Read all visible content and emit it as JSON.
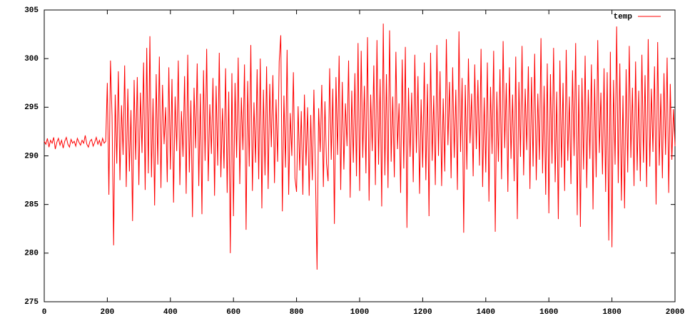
{
  "chart_data": {
    "type": "line",
    "xlim": [
      0,
      2000
    ],
    "ylim": [
      275,
      305
    ],
    "xticks": [
      0,
      200,
      400,
      600,
      800,
      1000,
      1200,
      1400,
      1600,
      1800,
      2000
    ],
    "yticks": [
      275,
      280,
      285,
      290,
      295,
      300,
      305
    ],
    "legend": "top-right",
    "x": [
      0,
      5,
      10,
      15,
      20,
      25,
      30,
      35,
      40,
      45,
      50,
      55,
      60,
      65,
      70,
      75,
      80,
      85,
      90,
      95,
      100,
      105,
      110,
      115,
      120,
      125,
      130,
      135,
      140,
      145,
      150,
      155,
      160,
      165,
      170,
      175,
      180,
      185,
      190,
      195,
      200,
      205,
      210,
      215,
      220,
      225,
      230,
      235,
      240,
      245,
      250,
      255,
      260,
      265,
      270,
      275,
      280,
      285,
      290,
      295,
      300,
      305,
      310,
      315,
      320,
      325,
      330,
      335,
      340,
      345,
      350,
      355,
      360,
      365,
      370,
      375,
      380,
      385,
      390,
      395,
      400,
      405,
      410,
      415,
      420,
      425,
      430,
      435,
      440,
      445,
      450,
      455,
      460,
      465,
      470,
      475,
      480,
      485,
      490,
      495,
      500,
      505,
      510,
      515,
      520,
      525,
      530,
      535,
      540,
      545,
      550,
      555,
      560,
      565,
      570,
      575,
      580,
      585,
      590,
      595,
      600,
      605,
      610,
      615,
      620,
      625,
      630,
      635,
      640,
      645,
      650,
      655,
      660,
      665,
      670,
      675,
      680,
      685,
      690,
      695,
      700,
      705,
      710,
      715,
      720,
      725,
      730,
      735,
      740,
      745,
      750,
      755,
      760,
      765,
      770,
      775,
      780,
      785,
      790,
      795,
      800,
      805,
      810,
      815,
      820,
      825,
      830,
      835,
      840,
      845,
      850,
      855,
      860,
      865,
      870,
      875,
      880,
      885,
      890,
      895,
      900,
      905,
      910,
      915,
      920,
      925,
      930,
      935,
      940,
      945,
      950,
      955,
      960,
      965,
      970,
      975,
      980,
      985,
      990,
      995,
      1000,
      1005,
      1010,
      1015,
      1020,
      1025,
      1030,
      1035,
      1040,
      1045,
      1050,
      1055,
      1060,
      1065,
      1070,
      1075,
      1080,
      1085,
      1090,
      1095,
      1100,
      1105,
      1110,
      1115,
      1120,
      1125,
      1130,
      1135,
      1140,
      1145,
      1150,
      1155,
      1160,
      1165,
      1170,
      1175,
      1180,
      1185,
      1190,
      1195,
      1200,
      1205,
      1210,
      1215,
      1220,
      1225,
      1230,
      1235,
      1240,
      1245,
      1250,
      1255,
      1260,
      1265,
      1270,
      1275,
      1280,
      1285,
      1290,
      1295,
      1300,
      1305,
      1310,
      1315,
      1320,
      1325,
      1330,
      1335,
      1340,
      1345,
      1350,
      1355,
      1360,
      1365,
      1370,
      1375,
      1380,
      1385,
      1390,
      1395,
      1400,
      1405,
      1410,
      1415,
      1420,
      1425,
      1430,
      1435,
      1440,
      1445,
      1450,
      1455,
      1460,
      1465,
      1470,
      1475,
      1480,
      1485,
      1490,
      1495,
      1500,
      1505,
      1510,
      1515,
      1520,
      1525,
      1530,
      1535,
      1540,
      1545,
      1550,
      1555,
      1560,
      1565,
      1570,
      1575,
      1580,
      1585,
      1590,
      1595,
      1600,
      1605,
      1610,
      1615,
      1620,
      1625,
      1630,
      1635,
      1640,
      1645,
      1650,
      1655,
      1660,
      1665,
      1670,
      1675,
      1680,
      1685,
      1690,
      1695,
      1700,
      1705,
      1710,
      1715,
      1720,
      1725,
      1730,
      1735,
      1740,
      1745,
      1750,
      1755,
      1760,
      1765,
      1770,
      1775,
      1780,
      1785,
      1790,
      1795,
      1800,
      1805,
      1810,
      1815,
      1820,
      1825,
      1830,
      1835,
      1840,
      1845,
      1850,
      1855,
      1860,
      1865,
      1870,
      1875,
      1880,
      1885,
      1890,
      1895,
      1900,
      1905,
      1910,
      1915,
      1920,
      1925,
      1930,
      1935,
      1940,
      1945,
      1950,
      1955,
      1960,
      1965,
      1970,
      1975,
      1980,
      1985,
      1990,
      1995,
      2000
    ],
    "series": [
      {
        "name": "temp",
        "color": "#ff0000",
        "values": [
          291.5,
          291.2,
          291.8,
          290.9,
          291.6,
          291.3,
          291.9,
          290.7,
          291.4,
          291.8,
          291.1,
          291.6,
          290.8,
          291.5,
          291.9,
          291.2,
          290.9,
          291.7,
          291.3,
          291.5,
          291.0,
          291.8,
          291.4,
          291.1,
          291.6,
          291.3,
          292.1,
          291.2,
          290.9,
          291.5,
          291.7,
          291.0,
          291.4,
          291.9,
          291.2,
          291.6,
          291.0,
          291.8,
          291.3,
          291.5,
          297.5,
          286.0,
          299.8,
          294.1,
          280.8,
          296.3,
          289.2,
          298.7,
          287.5,
          295.2,
          290.1,
          299.3,
          286.8,
          296.9,
          288.4,
          294.7,
          283.3,
          297.8,
          289.6,
          298.1,
          287.0,
          296.5,
          290.3,
          299.6,
          286.5,
          301.1,
          288.2,
          302.3,
          287.8,
          295.9,
          284.9,
          298.4,
          289.1,
          300.2,
          286.7,
          297.3,
          291.2,
          295.0,
          287.3,
          299.1,
          288.6,
          297.9,
          285.2,
          296.1,
          290.5,
          299.8,
          287.0,
          294.6,
          289.9,
          298.2,
          286.1,
          300.4,
          288.3,
          295.7,
          283.7,
          297.0,
          290.8,
          299.5,
          286.9,
          296.4,
          284.0,
          298.8,
          289.5,
          301.0,
          287.4,
          295.3,
          290.2,
          298.0,
          285.9,
          297.2,
          289.0,
          300.6,
          287.8,
          294.9,
          288.7,
          299.0,
          286.2,
          296.6,
          280.0,
          298.5,
          283.8,
          297.5,
          289.8,
          300.1,
          287.1,
          296.0,
          290.6,
          299.4,
          282.4,
          297.7,
          288.9,
          301.4,
          286.4,
          295.5,
          289.3,
          298.9,
          287.6,
          300.0,
          284.6,
          296.8,
          288.0,
          299.2,
          286.6,
          297.4,
          290.9,
          298.3,
          287.2,
          295.8,
          289.4,
          299.7,
          302.4,
          284.3,
          296.2,
          288.8,
          300.9,
          286.0,
          294.4,
          290.0,
          298.6,
          287.7,
          286.3,
          295.1,
          288.5,
          294.6,
          286.0,
          296.3,
          289.0,
          295.0,
          285.9,
          294.2,
          287.5,
          296.8,
          288.1,
          278.3,
          294.9,
          290.4,
          297.3,
          286.8,
          295.6,
          289.2,
          287.4,
          299.0,
          289.6,
          296.9,
          283.0,
          298.1,
          290.1,
          300.3,
          286.5,
          297.6,
          288.6,
          295.4,
          291.0,
          299.8,
          285.7,
          296.7,
          289.3,
          298.5,
          287.9,
          301.6,
          286.4,
          300.8,
          289.8,
          297.2,
          288.2,
          302.2,
          285.4,
          296.3,
          290.5,
          299.3,
          287.0,
          301.9,
          289.1,
          297.9,
          284.8,
          303.6,
          288.0,
          298.4,
          286.7,
          302.9,
          289.4,
          296.1,
          287.8,
          300.7,
          290.7,
          295.4,
          286.2,
          299.9,
          288.7,
          301.2,
          282.6,
          297.0,
          289.9,
          296.5,
          287.3,
          300.4,
          290.3,
          298.2,
          286.1,
          295.8,
          288.8,
          299.6,
          287.5,
          297.4,
          283.8,
          300.6,
          289.5,
          296.2,
          287.0,
          301.4,
          290.0,
          298.7,
          286.9,
          295.9,
          288.4,
          302.0,
          291.1,
          297.6,
          287.7,
          299.1,
          289.8,
          296.8,
          286.5,
          302.8,
          290.4,
          298.0,
          282.1,
          297.3,
          288.6,
          300.0,
          291.3,
          296.4,
          287.9,
          299.4,
          290.7,
          297.8,
          289.0,
          301.0,
          286.8,
          296.0,
          288.3,
          299.6,
          285.3,
          297.1,
          290.2,
          300.8,
          282.2,
          296.6,
          289.4,
          298.9,
          287.6,
          301.8,
          290.8,
          297.5,
          286.3,
          299.1,
          289.7,
          296.3,
          287.4,
          300.2,
          283.5,
          297.6,
          289.9,
          301.3,
          288.0,
          296.9,
          290.6,
          299.2,
          286.6,
          298.1,
          288.9,
          300.5,
          287.5,
          296.4,
          289.6,
          302.1,
          288.2,
          297.2,
          286.0,
          299.5,
          284.1,
          298.4,
          289.2,
          301.1,
          287.3,
          296.6,
          283.5,
          299.8,
          288.8,
          297.5,
          286.4,
          300.9,
          289.5,
          296.1,
          287.1,
          298.8,
          290.0,
          301.6,
          283.9,
          297.3,
          282.7,
          298.0,
          288.6,
          300.3,
          286.7,
          296.8,
          289.7,
          299.4,
          284.5,
          297.9,
          287.8,
          301.9,
          290.3,
          296.5,
          288.1,
          299.0,
          286.3,
          298.6,
          281.3,
          300.7,
          280.6,
          297.8,
          289.1,
          303.3,
          287.2,
          299.5,
          285.4,
          296.2,
          284.6,
          298.9,
          288.3,
          301.3,
          289.8,
          297.0,
          286.9,
          299.7,
          288.5,
          296.7,
          287.4,
          300.4,
          289.3,
          298.3,
          286.8,
          302.0,
          288.9,
          296.9,
          290.4,
          299.2,
          285.0,
          301.7,
          289.0,
          296.4,
          287.7,
          298.5,
          290.1,
          300.1,
          286.2,
          297.4,
          289.6,
          294.8,
          291.0
        ]
      }
    ]
  }
}
